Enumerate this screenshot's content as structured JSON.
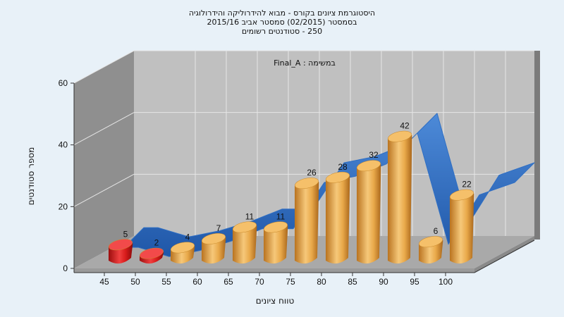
{
  "header": {
    "title_line1": "היסטוגרמת ציונים בקורס - מבוא להידרוליקה והידרולוגיה",
    "title_line2": "בסמסטר  (02/2015)  סמסטר אביב 2015/16",
    "title_line3": "250 - סטודנטים רשומים"
  },
  "colors": {
    "background": "#e8f1f8",
    "wall": "#c0c0c0",
    "left_wall": "#8f8f8f",
    "floor": "#a9a9a9",
    "bar_pass": "#e8a845",
    "bar_fail": "#d81b1b",
    "ribbon": "#2f6fc4"
  },
  "chart_data": {
    "type": "bar",
    "annotation": "במשימה : Final_A",
    "xlabel": "טווח ציונים",
    "ylabel": "מספר סטודנטים",
    "ylim": [
      0,
      60
    ],
    "yticks": [
      0,
      20,
      40,
      60
    ],
    "xticks": [
      "45",
      "50",
      "55",
      "60",
      "65",
      "70",
      "75",
      "80",
      "85",
      "90",
      "95",
      "100"
    ],
    "grid": true,
    "bars": [
      {
        "label": "5",
        "value": 5,
        "status": "fail"
      },
      {
        "label": "2",
        "value": 2,
        "status": "fail"
      },
      {
        "label": "4",
        "value": 4,
        "status": "pass"
      },
      {
        "label": "7",
        "value": 7,
        "status": "pass"
      },
      {
        "label": "11",
        "value": 11,
        "status": "pass"
      },
      {
        "label": "11",
        "value": 11,
        "status": "pass"
      },
      {
        "label": "26",
        "value": 26,
        "status": "pass"
      },
      {
        "label": "28",
        "value": 28,
        "status": "pass"
      },
      {
        "label": "32",
        "value": 32,
        "status": "pass"
      },
      {
        "label": "42",
        "value": 42,
        "status": "pass"
      },
      {
        "label": "6",
        "value": 6,
        "status": "pass"
      },
      {
        "label": "22",
        "value": 22,
        "status": "pass"
      }
    ],
    "trend_series": {
      "type": "area-ribbon",
      "values": [
        5,
        2,
        4,
        7,
        11,
        11,
        26,
        28,
        32,
        42,
        6,
        22
      ]
    }
  }
}
